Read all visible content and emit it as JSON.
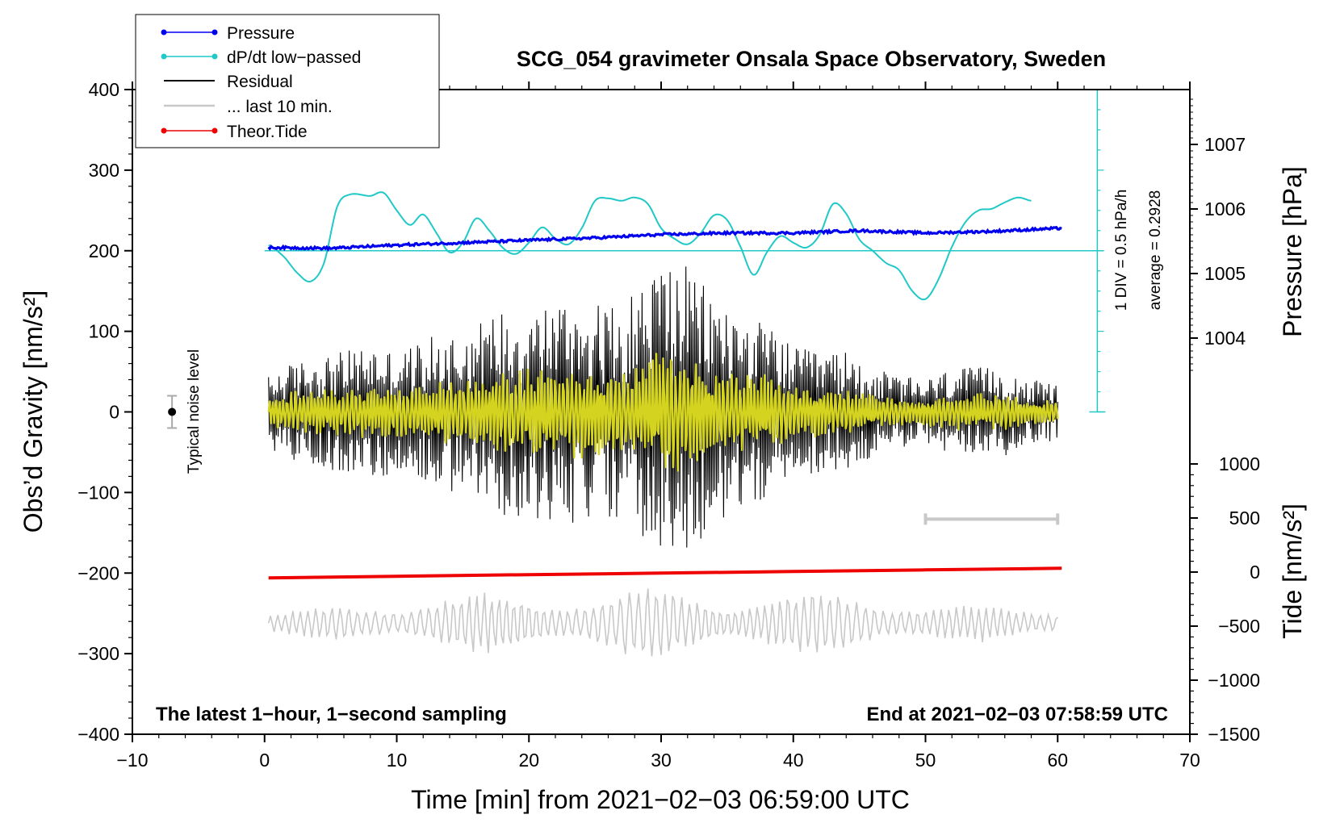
{
  "chart_data": {
    "type": "line",
    "title": "SCG_054 gravimeter Onsala Space Observatory, Sweden",
    "xlabel": "Time [min] from 2021−02−03 06:59:00 UTC",
    "ylabel_left": "Obs’d Gravity [nm/s²]",
    "ylabel_right_top": "Pressure [hPa]",
    "ylabel_right_bottom": "Tide [nm/s²]",
    "xlim": [
      -10,
      70
    ],
    "ylim_left": [
      -400,
      400
    ],
    "x_ticks": [
      "−10",
      "0",
      "10",
      "20",
      "30",
      "40",
      "50",
      "60",
      "70"
    ],
    "y_ticks_left": [
      "400",
      "300",
      "200",
      "100",
      "0",
      "−100",
      "−200",
      "−300",
      "−400"
    ],
    "pressure_ticks": [
      "1007",
      "1006",
      "1005",
      "1004"
    ],
    "tide_ticks": [
      "1000",
      "500",
      "0",
      "−500",
      "−1000",
      "−1500"
    ],
    "annotations": {
      "bottom_left": "The latest 1−hour, 1−second sampling",
      "bottom_right": "End at 2021−02−03 07:58:59 UTC",
      "noise_label": "Typical noise level",
      "dpdt_scale": "1 DIV = 0.5 hPa/h",
      "dpdt_average": "average = 0.2928"
    },
    "legend": {
      "position": "top-left",
      "entries": [
        "Pressure",
        "dP/dt low−passed",
        "Residual",
        "... last 10 min.",
        "Theor.Tide"
      ]
    },
    "colors": {
      "pressure": "#0000ee",
      "dpdt": "#20c8c8",
      "residual": "#000000",
      "last10": "#c8c8c8",
      "tide": "#ee0000",
      "filtered": "#d4d420"
    },
    "series": [
      {
        "name": "Pressure",
        "units": "nm/s² display scale",
        "x": [
          0.3,
          5,
          10,
          15,
          20,
          25,
          30,
          35,
          40,
          45,
          50,
          55,
          60.3
        ],
        "values": [
          204,
          203,
          207,
          210,
          213,
          216,
          220,
          222,
          222,
          225,
          222,
          224,
          228
        ]
      },
      {
        "name": "dP/dt low−passed",
        "units": "nm/s² display scale",
        "x": [
          0.3,
          1.5,
          2.5,
          3.5,
          4.5,
          5.5,
          6.5,
          8,
          9,
          10,
          11,
          12,
          13,
          14,
          15,
          16,
          17,
          18,
          19,
          20,
          21,
          22,
          23,
          24,
          25,
          26,
          27,
          28,
          29,
          30,
          31,
          32,
          33,
          34,
          35,
          36,
          37,
          38,
          39,
          40,
          41,
          42,
          43,
          44,
          45,
          46,
          47,
          48,
          49,
          50,
          51,
          52,
          53,
          54,
          55,
          56,
          57,
          58
        ],
        "values": [
          207,
          192,
          172,
          162,
          185,
          255,
          270,
          268,
          272,
          250,
          232,
          245,
          222,
          198,
          210,
          240,
          225,
          204,
          196,
          210,
          229,
          215,
          208,
          228,
          262,
          265,
          262,
          266,
          258,
          228,
          215,
          208,
          222,
          244,
          238,
          205,
          170,
          198,
          218,
          210,
          204,
          220,
          258,
          246,
          214,
          200,
          185,
          176,
          150,
          140,
          165,
          205,
          235,
          250,
          252,
          260,
          266,
          262
        ]
      },
      {
        "name": "Residual",
        "units": "nm/s²",
        "x": [
          0.3,
          2,
          4,
          6,
          8,
          10,
          12,
          14,
          16,
          18,
          20,
          22,
          24,
          26,
          28,
          30,
          32,
          34,
          36,
          38,
          40,
          42,
          44,
          46,
          48,
          50,
          52,
          54,
          56,
          58,
          60
        ],
        "envelope": [
          45,
          60,
          70,
          75,
          85,
          75,
          90,
          100,
          110,
          130,
          130,
          140,
          140,
          130,
          150,
          195,
          180,
          145,
          120,
          110,
          80,
          75,
          75,
          55,
          45,
          40,
          55,
          55,
          55,
          40,
          35
        ]
      },
      {
        "name": "... last 10 min.",
        "units": "display scale",
        "x": [
          0.3,
          60
        ]
      },
      {
        "name": "Theor.Tide",
        "units": "nm/s² display scale",
        "x": [
          0.3,
          10,
          20,
          30,
          40,
          50,
          60.3
        ],
        "values": [
          -206,
          -204,
          -202,
          -200,
          -198,
          -196,
          -194
        ]
      }
    ],
    "range_marker_last10": {
      "x": [
        50,
        60
      ],
      "y": -133
    },
    "noise_bar": {
      "x": -7,
      "y": 0,
      "error": 20
    }
  }
}
